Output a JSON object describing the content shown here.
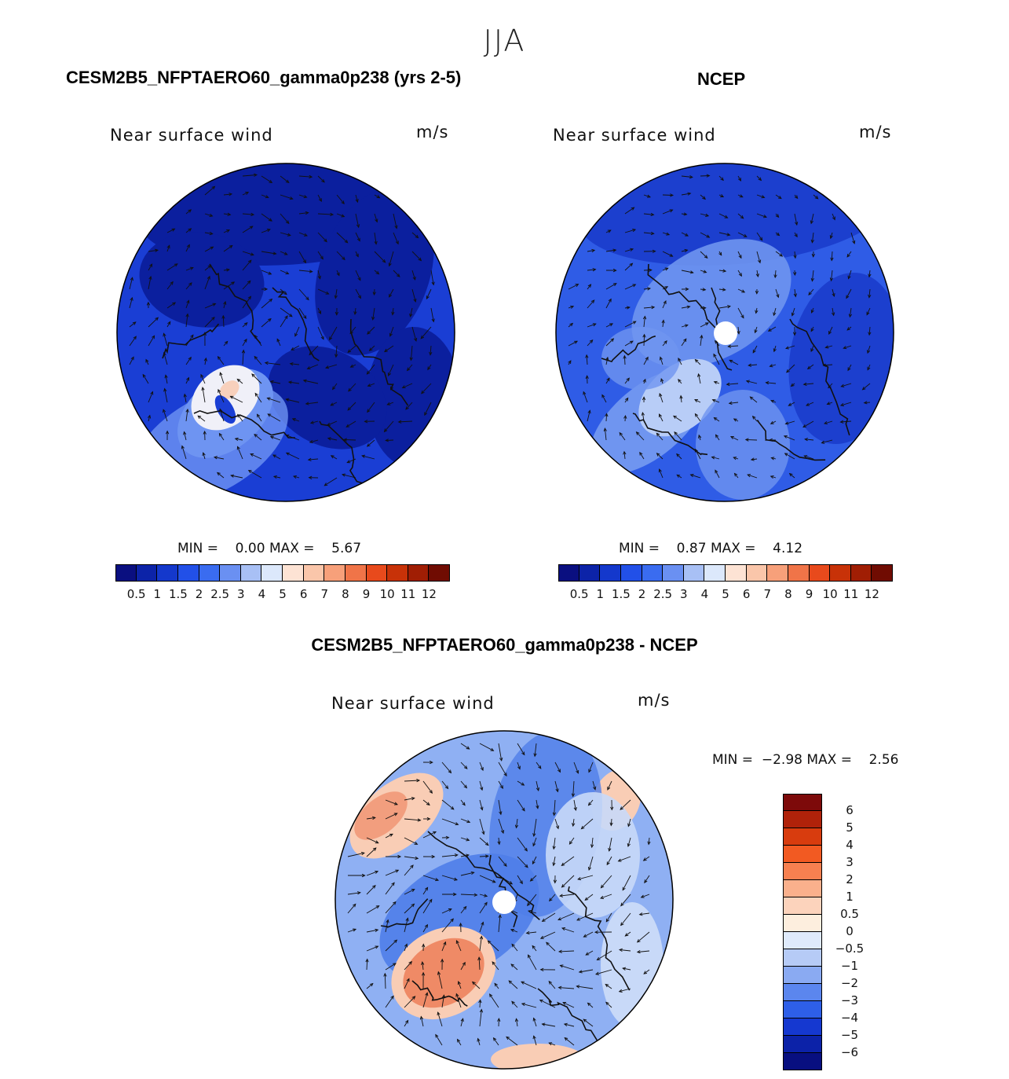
{
  "season": "JJA",
  "panels": {
    "model": {
      "title": "CESM2B5_NFPTAERO60_gamma0p238 (yrs 2-5)",
      "field": "Near surface wind",
      "units": "m/s",
      "min_label": "MIN =",
      "min_value": "0.00",
      "max_label": "MAX =",
      "max_value": "5.67"
    },
    "obs": {
      "title": "NCEP",
      "field": "Near surface wind",
      "units": "m/s",
      "min_label": "MIN =",
      "min_value": "0.87",
      "max_label": "MAX =",
      "max_value": "4.12"
    },
    "diff": {
      "title": "CESM2B5_NFPTAERO60_gamma0p238 - NCEP",
      "field": "Near surface wind",
      "units": "m/s",
      "min_label": "MIN =",
      "min_value": "−2.98",
      "max_label": "MAX =",
      "max_value": "2.56"
    }
  },
  "abs_colorbar": {
    "labels": [
      "0.5",
      "1",
      "1.5",
      "2",
      "2.5",
      "3",
      "4",
      "5",
      "6",
      "7",
      "8",
      "9",
      "10",
      "11",
      "12"
    ],
    "colors": [
      "#0a0f80",
      "#0c23a8",
      "#1438cc",
      "#2250e8",
      "#3a6cf0",
      "#6a90f2",
      "#a8c0f5",
      "#dce8fb",
      "#fde3d4",
      "#fac6aa",
      "#f7a07a",
      "#f07448",
      "#e84a1c",
      "#c83208",
      "#a01e04",
      "#700c02"
    ]
  },
  "diff_colorbar": {
    "labels": [
      "6",
      "5",
      "4",
      "3",
      "2",
      "1",
      "0.5",
      "0",
      "−0.5",
      "−1",
      "−2",
      "−3",
      "−4",
      "−5",
      "−6"
    ],
    "colors": [
      "#7d0a0a",
      "#b0220a",
      "#d83c0e",
      "#f25a22",
      "#f78050",
      "#fab08c",
      "#fcd3bc",
      "#fdeede",
      "#dfeafb",
      "#b6cbf6",
      "#8aaaf2",
      "#5b86ee",
      "#2e5fe8",
      "#1538d0",
      "#0c22a8",
      "#080f80"
    ]
  },
  "map_colors": {
    "model": {
      "base": "#1a3ed4",
      "dark": "#0b1f9e",
      "light": "#6e94f2",
      "pale": "#f0f0f8",
      "peach": "#f8d0bc"
    },
    "obs": {
      "base": "#2f5ce6",
      "dark": "#1c3fce",
      "light": "#6f95f0",
      "pale": "#b8cdf7"
    },
    "diff": {
      "base": "#8fb0f3",
      "dark": "#4f7ee9",
      "light": "#c8d9f8",
      "red": "#ef8a66",
      "peach": "#f9cdb5"
    }
  }
}
